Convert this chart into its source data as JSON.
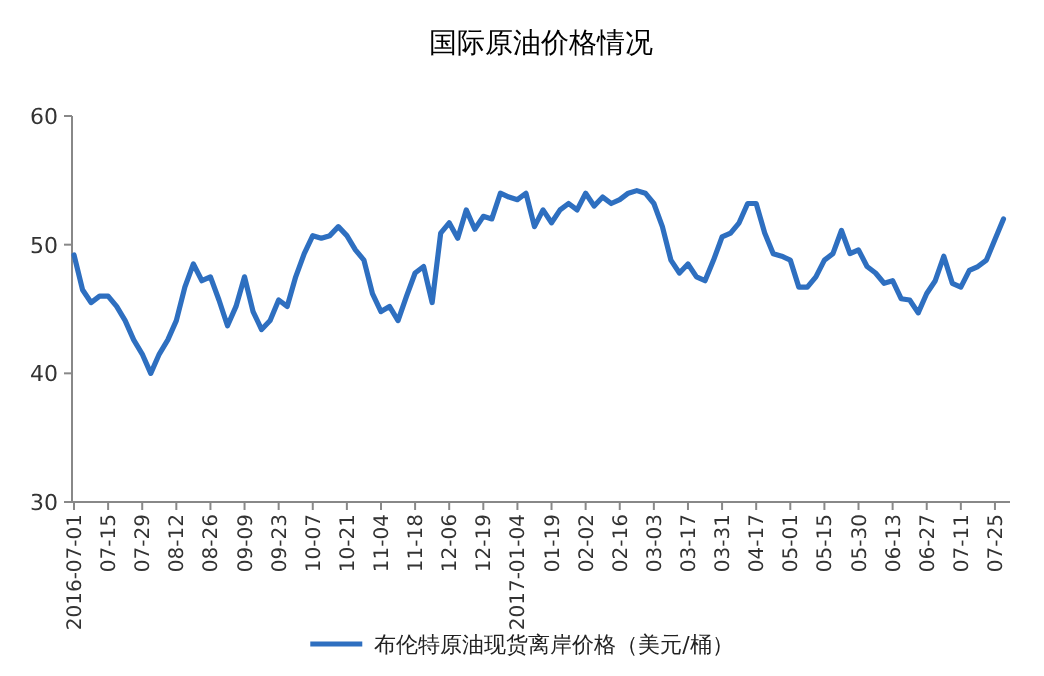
{
  "chart_data": {
    "type": "line",
    "title": "国际原油价格情况",
    "categories": [
      "2016-07-01",
      null,
      null,
      null,
      "07-15",
      null,
      null,
      null,
      "07-29",
      null,
      null,
      null,
      "08-12",
      null,
      null,
      null,
      "08-26",
      null,
      null,
      null,
      "09-09",
      null,
      null,
      null,
      "09-23",
      null,
      null,
      null,
      "10-07",
      null,
      null,
      null,
      "10-21",
      null,
      null,
      null,
      "11-04",
      null,
      null,
      null,
      "11-18",
      null,
      null,
      null,
      "12-06",
      null,
      null,
      null,
      "12-19",
      null,
      null,
      null,
      "2017-01-04",
      null,
      null,
      null,
      "01-19",
      null,
      null,
      null,
      "02-02",
      null,
      null,
      null,
      "02-16",
      null,
      null,
      null,
      "03-03",
      null,
      null,
      null,
      "03-17",
      null,
      null,
      null,
      "03-31",
      null,
      null,
      null,
      "04-17",
      null,
      null,
      null,
      "05-01",
      null,
      null,
      null,
      "05-15",
      null,
      null,
      null,
      "05-30",
      null,
      null,
      null,
      "06-13",
      null,
      null,
      null,
      "06-27",
      null,
      null,
      null,
      "07-11",
      null,
      null,
      null,
      "07-25",
      null
    ],
    "series": [
      {
        "name": "布伦特原油现货离岸价格（美元/桶）",
        "color": "#2e6fc0",
        "values": [
          49.2,
          46.5,
          45.5,
          46,
          46.0,
          45.2,
          44.1,
          42.6,
          41.5,
          40.0,
          41.5,
          42.6,
          44.1,
          46.7,
          48.5,
          47.2,
          47.5,
          45.7,
          43.7,
          45.2,
          47.5,
          44.8,
          43.4,
          44.1,
          45.7,
          45.2,
          47.5,
          49.3,
          50.7,
          50.5,
          50.7,
          51.4,
          50.7,
          49.6,
          48.8,
          46.2,
          44.8,
          45.2,
          44.1,
          46.0,
          47.8,
          48.3,
          45.5,
          50.9,
          51.7,
          50.5,
          52.7,
          51.2,
          52.2,
          52.0,
          54.0,
          53.7,
          53.5,
          54.0,
          51.4,
          52.7,
          51.7,
          52.7,
          53.2,
          52.7,
          54.0,
          53.0,
          53.7,
          53.2,
          53.5,
          54.0,
          54.2,
          54.0,
          53.2,
          51.4,
          48.8,
          47.8,
          48.5,
          47.5,
          47.2,
          48.8,
          50.6,
          50.9,
          51.7,
          53.2,
          53.2,
          50.9,
          49.3,
          49.1,
          48.8,
          46.7,
          46.7,
          47.5,
          48.8,
          49.3,
          51.1,
          49.3,
          49.6,
          48.3,
          47.8,
          47.0,
          47.2,
          45.8,
          45.7,
          44.7,
          46.2,
          47.2,
          49.1,
          47.0,
          46.7,
          48.0,
          48.3,
          48.8,
          50.4,
          52.0
        ]
      }
    ],
    "ylim": [
      30,
      60
    ],
    "yticks": [
      30,
      40,
      50,
      60
    ],
    "legend": "bottom"
  }
}
